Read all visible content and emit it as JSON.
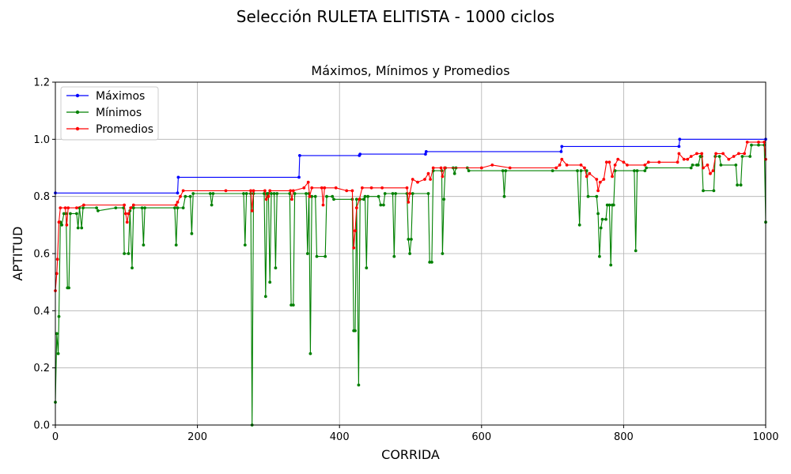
{
  "figure": {
    "suptitle": "Selección RULETA ELITISTA - 1000 ciclos"
  },
  "chart_data": {
    "type": "line",
    "title": "Máximos, Mínimos y Promedios",
    "xlabel": "CORRIDA",
    "ylabel": "APTITUD",
    "xlim": [
      0,
      1000
    ],
    "ylim": [
      0,
      1.2
    ],
    "xticks": [
      "0",
      "200",
      "400",
      "600",
      "800",
      "1000"
    ],
    "yticks": [
      "0.0",
      "0.2",
      "0.4",
      "0.6",
      "0.8",
      "1.0",
      "1.2"
    ],
    "grid": true,
    "legend_position": "top-left",
    "series": [
      {
        "name": "Máximos",
        "color": "#0000ff",
        "points": [
          [
            0,
            0.812
          ],
          [
            172,
            0.812
          ],
          [
            173,
            0.867
          ],
          [
            343,
            0.867
          ],
          [
            344,
            0.943
          ],
          [
            428,
            0.943
          ],
          [
            429,
            0.948
          ],
          [
            521,
            0.948
          ],
          [
            522,
            0.957
          ],
          [
            712,
            0.957
          ],
          [
            713,
            0.975
          ],
          [
            878,
            0.975
          ],
          [
            879,
            1.0
          ],
          [
            1000,
            1.0
          ]
        ]
      },
      {
        "name": "Mínimos",
        "color": "#008000",
        "points": [
          [
            0,
            0.08
          ],
          [
            2,
            0.32
          ],
          [
            4,
            0.25
          ],
          [
            5,
            0.38
          ],
          [
            7,
            0.71
          ],
          [
            9,
            0.7
          ],
          [
            12,
            0.74
          ],
          [
            15,
            0.74
          ],
          [
            17,
            0.48
          ],
          [
            19,
            0.48
          ],
          [
            21,
            0.74
          ],
          [
            30,
            0.74
          ],
          [
            32,
            0.69
          ],
          [
            34,
            0.76
          ],
          [
            37,
            0.69
          ],
          [
            39,
            0.76
          ],
          [
            58,
            0.76
          ],
          [
            60,
            0.75
          ],
          [
            85,
            0.76
          ],
          [
            96,
            0.76
          ],
          [
            97,
            0.6
          ],
          [
            103,
            0.6
          ],
          [
            105,
            0.75
          ],
          [
            108,
            0.55
          ],
          [
            110,
            0.76
          ],
          [
            122,
            0.76
          ],
          [
            124,
            0.63
          ],
          [
            126,
            0.76
          ],
          [
            168,
            0.76
          ],
          [
            170,
            0.63
          ],
          [
            172,
            0.76
          ],
          [
            180,
            0.76
          ],
          [
            183,
            0.8
          ],
          [
            190,
            0.8
          ],
          [
            192,
            0.67
          ],
          [
            194,
            0.81
          ],
          [
            218,
            0.81
          ],
          [
            220,
            0.77
          ],
          [
            222,
            0.81
          ],
          [
            265,
            0.81
          ],
          [
            267,
            0.63
          ],
          [
            269,
            0.81
          ],
          [
            275,
            0.81
          ],
          [
            277,
            0.0
          ],
          [
            279,
            0.81
          ],
          [
            294,
            0.81
          ],
          [
            296,
            0.45
          ],
          [
            298,
            0.81
          ],
          [
            300,
            0.81
          ],
          [
            302,
            0.5
          ],
          [
            304,
            0.81
          ],
          [
            308,
            0.81
          ],
          [
            310,
            0.55
          ],
          [
            312,
            0.81
          ],
          [
            330,
            0.81
          ],
          [
            332,
            0.42
          ],
          [
            335,
            0.42
          ],
          [
            337,
            0.81
          ],
          [
            353,
            0.81
          ],
          [
            355,
            0.6
          ],
          [
            357,
            0.81
          ],
          [
            359,
            0.25
          ],
          [
            361,
            0.8
          ],
          [
            366,
            0.8
          ],
          [
            368,
            0.59
          ],
          [
            380,
            0.59
          ],
          [
            382,
            0.8
          ],
          [
            390,
            0.8
          ],
          [
            392,
            0.79
          ],
          [
            418,
            0.79
          ],
          [
            420,
            0.33
          ],
          [
            422,
            0.33
          ],
          [
            424,
            0.79
          ],
          [
            427,
            0.14
          ],
          [
            429,
            0.79
          ],
          [
            434,
            0.79
          ],
          [
            436,
            0.8
          ],
          [
            438,
            0.55
          ],
          [
            440,
            0.8
          ],
          [
            455,
            0.8
          ],
          [
            458,
            0.77
          ],
          [
            462,
            0.77
          ],
          [
            464,
            0.81
          ],
          [
            475,
            0.81
          ],
          [
            477,
            0.59
          ],
          [
            479,
            0.81
          ],
          [
            495,
            0.81
          ],
          [
            497,
            0.65
          ],
          [
            499,
            0.6
          ],
          [
            501,
            0.65
          ],
          [
            503,
            0.81
          ],
          [
            525,
            0.81
          ],
          [
            527,
            0.57
          ],
          [
            530,
            0.57
          ],
          [
            532,
            0.89
          ],
          [
            544,
            0.89
          ],
          [
            545,
            0.6
          ],
          [
            547,
            0.79
          ],
          [
            549,
            0.9
          ],
          [
            560,
            0.9
          ],
          [
            562,
            0.88
          ],
          [
            564,
            0.9
          ],
          [
            580,
            0.9
          ],
          [
            582,
            0.89
          ],
          [
            630,
            0.89
          ],
          [
            632,
            0.8
          ],
          [
            634,
            0.89
          ],
          [
            700,
            0.89
          ],
          [
            735,
            0.89
          ],
          [
            738,
            0.7
          ],
          [
            740,
            0.89
          ],
          [
            748,
            0.89
          ],
          [
            750,
            0.8
          ],
          [
            762,
            0.8
          ],
          [
            764,
            0.74
          ],
          [
            766,
            0.59
          ],
          [
            768,
            0.69
          ],
          [
            770,
            0.72
          ],
          [
            775,
            0.72
          ],
          [
            777,
            0.77
          ],
          [
            780,
            0.77
          ],
          [
            782,
            0.56
          ],
          [
            784,
            0.77
          ],
          [
            786,
            0.77
          ],
          [
            788,
            0.89
          ],
          [
            815,
            0.89
          ],
          [
            817,
            0.61
          ],
          [
            819,
            0.89
          ],
          [
            830,
            0.89
          ],
          [
            832,
            0.9
          ],
          [
            895,
            0.9
          ],
          [
            897,
            0.91
          ],
          [
            903,
            0.91
          ],
          [
            905,
            0.91
          ],
          [
            908,
            0.94
          ],
          [
            910,
            0.94
          ],
          [
            912,
            0.82
          ],
          [
            927,
            0.82
          ],
          [
            929,
            0.94
          ],
          [
            935,
            0.94
          ],
          [
            937,
            0.91
          ],
          [
            958,
            0.91
          ],
          [
            960,
            0.84
          ],
          [
            965,
            0.84
          ],
          [
            967,
            0.94
          ],
          [
            978,
            0.94
          ],
          [
            980,
            0.98
          ],
          [
            990,
            0.98
          ],
          [
            998,
            0.98
          ],
          [
            1000,
            0.71
          ]
        ]
      },
      {
        "name": "Promedios",
        "color": "#ff0000",
        "points": [
          [
            0,
            0.47
          ],
          [
            2,
            0.53
          ],
          [
            3,
            0.58
          ],
          [
            5,
            0.71
          ],
          [
            7,
            0.76
          ],
          [
            14,
            0.76
          ],
          [
            16,
            0.7
          ],
          [
            18,
            0.76
          ],
          [
            30,
            0.76
          ],
          [
            40,
            0.77
          ],
          [
            97,
            0.77
          ],
          [
            99,
            0.74
          ],
          [
            101,
            0.71
          ],
          [
            103,
            0.74
          ],
          [
            106,
            0.76
          ],
          [
            110,
            0.77
          ],
          [
            170,
            0.77
          ],
          [
            172,
            0.78
          ],
          [
            176,
            0.8
          ],
          [
            180,
            0.82
          ],
          [
            240,
            0.82
          ],
          [
            275,
            0.82
          ],
          [
            277,
            0.75
          ],
          [
            279,
            0.82
          ],
          [
            295,
            0.82
          ],
          [
            297,
            0.79
          ],
          [
            300,
            0.8
          ],
          [
            302,
            0.82
          ],
          [
            331,
            0.82
          ],
          [
            333,
            0.79
          ],
          [
            335,
            0.82
          ],
          [
            350,
            0.83
          ],
          [
            356,
            0.85
          ],
          [
            358,
            0.8
          ],
          [
            361,
            0.83
          ],
          [
            375,
            0.83
          ],
          [
            377,
            0.77
          ],
          [
            379,
            0.83
          ],
          [
            395,
            0.83
          ],
          [
            410,
            0.82
          ],
          [
            418,
            0.82
          ],
          [
            420,
            0.62
          ],
          [
            422,
            0.68
          ],
          [
            424,
            0.76
          ],
          [
            428,
            0.79
          ],
          [
            432,
            0.83
          ],
          [
            445,
            0.83
          ],
          [
            460,
            0.83
          ],
          [
            495,
            0.83
          ],
          [
            497,
            0.78
          ],
          [
            499,
            0.81
          ],
          [
            503,
            0.86
          ],
          [
            510,
            0.85
          ],
          [
            520,
            0.86
          ],
          [
            525,
            0.88
          ],
          [
            528,
            0.86
          ],
          [
            532,
            0.9
          ],
          [
            543,
            0.9
          ],
          [
            545,
            0.87
          ],
          [
            548,
            0.9
          ],
          [
            600,
            0.9
          ],
          [
            615,
            0.91
          ],
          [
            640,
            0.9
          ],
          [
            705,
            0.9
          ],
          [
            710,
            0.91
          ],
          [
            713,
            0.93
          ],
          [
            720,
            0.91
          ],
          [
            740,
            0.91
          ],
          [
            745,
            0.9
          ],
          [
            748,
            0.87
          ],
          [
            752,
            0.88
          ],
          [
            762,
            0.86
          ],
          [
            764,
            0.82
          ],
          [
            767,
            0.85
          ],
          [
            772,
            0.86
          ],
          [
            776,
            0.92
          ],
          [
            780,
            0.92
          ],
          [
            784,
            0.87
          ],
          [
            788,
            0.91
          ],
          [
            792,
            0.93
          ],
          [
            800,
            0.92
          ],
          [
            805,
            0.91
          ],
          [
            830,
            0.91
          ],
          [
            835,
            0.92
          ],
          [
            850,
            0.92
          ],
          [
            876,
            0.92
          ],
          [
            878,
            0.95
          ],
          [
            885,
            0.93
          ],
          [
            890,
            0.93
          ],
          [
            895,
            0.94
          ],
          [
            903,
            0.95
          ],
          [
            910,
            0.95
          ],
          [
            912,
            0.9
          ],
          [
            918,
            0.91
          ],
          [
            922,
            0.88
          ],
          [
            926,
            0.89
          ],
          [
            930,
            0.95
          ],
          [
            940,
            0.95
          ],
          [
            948,
            0.93
          ],
          [
            955,
            0.94
          ],
          [
            962,
            0.95
          ],
          [
            970,
            0.95
          ],
          [
            974,
            0.99
          ],
          [
            990,
            0.99
          ],
          [
            998,
            0.99
          ],
          [
            1000,
            0.93
          ]
        ]
      }
    ]
  }
}
